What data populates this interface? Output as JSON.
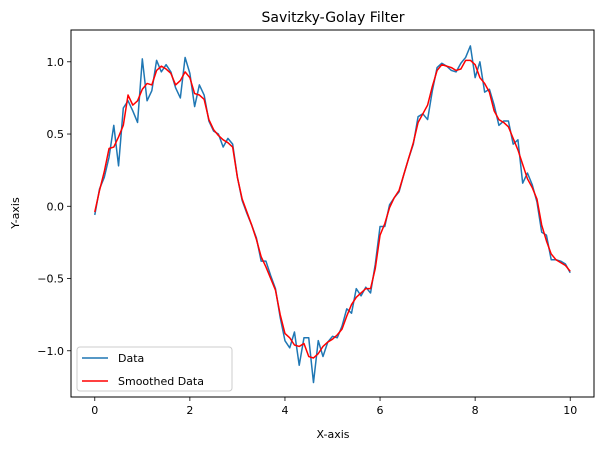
{
  "chart_data": {
    "type": "line",
    "title": "Savitzky-Golay Filter",
    "xlabel": "X-axis",
    "ylabel": "Y-axis",
    "xlim": [
      -0.5,
      10.5
    ],
    "ylim": [
      -1.32,
      1.22
    ],
    "xticks": [
      0,
      2,
      4,
      6,
      8,
      10
    ],
    "yticks": [
      -1.0,
      -0.5,
      0.0,
      0.5,
      1.0
    ],
    "xtick_labels": [
      "0",
      "2",
      "4",
      "6",
      "8",
      "10"
    ],
    "ytick_labels": [
      "−1.0",
      "−0.5",
      "0.0",
      "0.5",
      "1.0"
    ],
    "grid": false,
    "legend_placement": "lower-left",
    "series": [
      {
        "name": "Data",
        "color": "#1f77b4",
        "x": [
          0.0,
          0.1,
          0.2,
          0.3,
          0.4,
          0.5,
          0.6,
          0.7,
          0.8,
          0.9,
          1.0,
          1.1,
          1.2,
          1.3,
          1.4,
          1.5,
          1.6,
          1.7,
          1.8,
          1.9,
          2.0,
          2.1,
          2.2,
          2.3,
          2.4,
          2.5,
          2.6,
          2.7,
          2.8,
          2.9,
          3.0,
          3.1,
          3.2,
          3.3,
          3.4,
          3.5,
          3.6,
          3.7,
          3.8,
          3.9,
          4.0,
          4.1,
          4.2,
          4.3,
          4.4,
          4.5,
          4.6,
          4.7,
          4.8,
          4.9,
          5.0,
          5.1,
          5.2,
          5.3,
          5.4,
          5.5,
          5.6,
          5.7,
          5.8,
          5.9,
          6.0,
          6.1,
          6.2,
          6.3,
          6.4,
          6.5,
          6.6,
          6.7,
          6.8,
          6.9,
          7.0,
          7.1,
          7.2,
          7.3,
          7.4,
          7.5,
          7.6,
          7.7,
          7.8,
          7.9,
          8.0,
          8.1,
          8.2,
          8.3,
          8.4,
          8.5,
          8.6,
          8.7,
          8.8,
          8.9,
          9.0,
          9.1,
          9.2,
          9.3,
          9.4,
          9.5,
          9.6,
          9.7,
          9.8,
          9.9,
          10.0
        ],
        "y": [
          -0.06,
          0.12,
          0.2,
          0.34,
          0.56,
          0.28,
          0.68,
          0.73,
          0.66,
          0.58,
          1.02,
          0.73,
          0.8,
          1.01,
          0.93,
          0.98,
          0.93,
          0.82,
          0.75,
          1.03,
          0.92,
          0.69,
          0.84,
          0.77,
          0.59,
          0.52,
          0.5,
          0.41,
          0.47,
          0.43,
          0.2,
          0.04,
          -0.05,
          -0.13,
          -0.22,
          -0.38,
          -0.38,
          -0.48,
          -0.57,
          -0.77,
          -0.93,
          -0.98,
          -0.87,
          -1.1,
          -0.91,
          -0.91,
          -1.22,
          -0.93,
          -1.04,
          -0.94,
          -0.9,
          -0.91,
          -0.83,
          -0.71,
          -0.74,
          -0.57,
          -0.62,
          -0.56,
          -0.6,
          -0.4,
          -0.14,
          -0.14,
          0.01,
          0.06,
          0.1,
          0.22,
          0.33,
          0.43,
          0.62,
          0.64,
          0.6,
          0.8,
          0.96,
          0.99,
          0.97,
          0.94,
          0.93,
          0.99,
          1.03,
          1.11,
          0.89,
          1.0,
          0.79,
          0.81,
          0.7,
          0.56,
          0.59,
          0.59,
          0.43,
          0.46,
          0.16,
          0.23,
          0.15,
          0.03,
          -0.18,
          -0.2,
          -0.37,
          -0.37,
          -0.38,
          -0.4,
          -0.46
        ]
      },
      {
        "name": "Smoothed Data",
        "color": "#ff0000",
        "x": [
          0.0,
          0.1,
          0.2,
          0.3,
          0.4,
          0.5,
          0.6,
          0.7,
          0.8,
          0.9,
          1.0,
          1.1,
          1.2,
          1.3,
          1.4,
          1.5,
          1.6,
          1.7,
          1.8,
          1.9,
          2.0,
          2.1,
          2.2,
          2.3,
          2.4,
          2.5,
          2.6,
          2.7,
          2.8,
          2.9,
          3.0,
          3.1,
          3.2,
          3.3,
          3.4,
          3.5,
          3.6,
          3.7,
          3.8,
          3.9,
          4.0,
          4.1,
          4.2,
          4.3,
          4.4,
          4.5,
          4.6,
          4.7,
          4.8,
          4.9,
          5.0,
          5.1,
          5.2,
          5.3,
          5.4,
          5.5,
          5.6,
          5.7,
          5.8,
          5.9,
          6.0,
          6.1,
          6.2,
          6.3,
          6.4,
          6.5,
          6.6,
          6.7,
          6.8,
          6.9,
          7.0,
          7.1,
          7.2,
          7.3,
          7.4,
          7.5,
          7.6,
          7.7,
          7.8,
          7.9,
          8.0,
          8.1,
          8.2,
          8.3,
          8.4,
          8.5,
          8.6,
          8.7,
          8.8,
          8.9,
          9.0,
          9.1,
          9.2,
          9.3,
          9.4,
          9.5,
          9.6,
          9.7,
          9.8,
          9.9,
          10.0
        ],
        "y": [
          -0.04,
          0.11,
          0.24,
          0.4,
          0.41,
          0.48,
          0.56,
          0.77,
          0.7,
          0.73,
          0.81,
          0.85,
          0.84,
          0.94,
          0.97,
          0.95,
          0.92,
          0.84,
          0.87,
          0.93,
          0.89,
          0.78,
          0.77,
          0.74,
          0.6,
          0.53,
          0.49,
          0.46,
          0.44,
          0.41,
          0.2,
          0.05,
          -0.04,
          -0.13,
          -0.23,
          -0.35,
          -0.42,
          -0.5,
          -0.58,
          -0.75,
          -0.88,
          -0.91,
          -0.96,
          -0.97,
          -0.95,
          -1.04,
          -1.05,
          -1.02,
          -0.97,
          -0.94,
          -0.92,
          -0.89,
          -0.85,
          -0.76,
          -0.68,
          -0.63,
          -0.6,
          -0.57,
          -0.57,
          -0.43,
          -0.2,
          -0.12,
          -0.01,
          0.06,
          0.11,
          0.22,
          0.33,
          0.44,
          0.58,
          0.64,
          0.7,
          0.83,
          0.94,
          0.98,
          0.97,
          0.96,
          0.94,
          0.95,
          1.01,
          1.01,
          0.98,
          0.89,
          0.85,
          0.79,
          0.66,
          0.6,
          0.58,
          0.55,
          0.47,
          0.39,
          0.29,
          0.19,
          0.13,
          0.05,
          -0.13,
          -0.24,
          -0.33,
          -0.37,
          -0.39,
          -0.41,
          -0.45
        ]
      }
    ]
  }
}
